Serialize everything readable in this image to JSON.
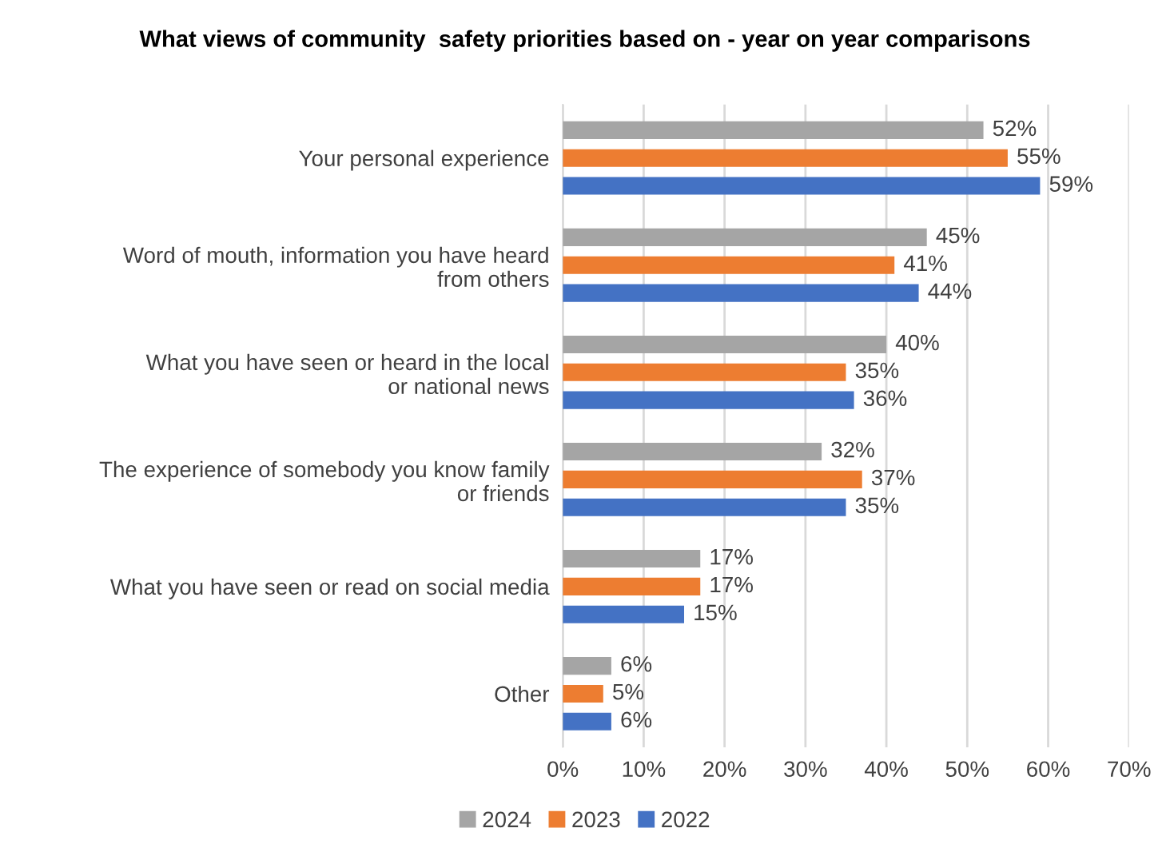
{
  "chart_data": {
    "type": "bar",
    "orientation": "horizontal",
    "title": "What views of community  safety priorities based on - year on year comparisons",
    "categories": [
      "Your personal experience",
      "Word of mouth, information you have heard from others",
      "What you have seen or heard in the local or national news",
      "The experience of somebody you know family or friends",
      "What you have seen or read on social media",
      "Other"
    ],
    "series": [
      {
        "name": "2024",
        "color": "#a5a5a5",
        "values": [
          52,
          45,
          40,
          32,
          17,
          6
        ],
        "value_labels": [
          "52%",
          "45%",
          "40%",
          "32%",
          "17%",
          "6%"
        ]
      },
      {
        "name": "2023",
        "color": "#ed7d31",
        "values": [
          55,
          41,
          35,
          37,
          17,
          5
        ],
        "value_labels": [
          "55%",
          "41%",
          "35%",
          "37%",
          "17%",
          "5%"
        ]
      },
      {
        "name": "2022",
        "color": "#4472c4",
        "values": [
          59,
          44,
          36,
          35,
          15,
          6
        ],
        "value_labels": [
          "59%",
          "44%",
          "36%",
          "35%",
          "15%",
          "6%"
        ]
      }
    ],
    "xlim": [
      0,
      70
    ],
    "xticks": [
      {
        "value": 0,
        "label": "0%"
      },
      {
        "value": 10,
        "label": "10%"
      },
      {
        "value": 20,
        "label": "20%"
      },
      {
        "value": 30,
        "label": "30%"
      },
      {
        "value": 40,
        "label": "40%"
      },
      {
        "value": 50,
        "label": "50%"
      },
      {
        "value": 60,
        "label": "60%"
      },
      {
        "value": 70,
        "label": "70%"
      }
    ],
    "grid": "x",
    "legend": "bottom"
  }
}
